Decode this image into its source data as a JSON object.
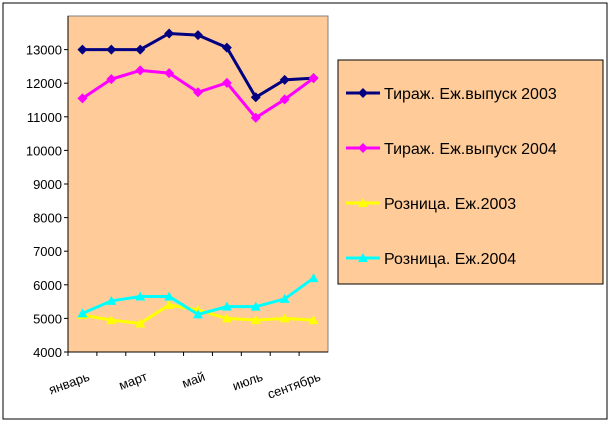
{
  "chart_data": {
    "type": "line",
    "categories": [
      "январь",
      null,
      "март",
      null,
      "май",
      null,
      "июль",
      null,
      "сентябрь"
    ],
    "series": [
      {
        "name": "Тираж. Еж.выпуск 2003",
        "color": "#000080",
        "marker": "diamond",
        "values": [
          13000,
          13000,
          13000,
          13480,
          13430,
          13060,
          11580,
          12100,
          12150
        ]
      },
      {
        "name": "Тираж. Еж.выпуск 2004",
        "color": "#ff00ff",
        "marker": "diamond",
        "values": [
          11550,
          12120,
          12380,
          12300,
          11730,
          12010,
          10970,
          11520,
          12150
        ]
      },
      {
        "name": "Розница. Еж.2003",
        "color": "#ffff00",
        "marker": "triangle",
        "values": [
          5100,
          4950,
          4850,
          5400,
          5250,
          5000,
          4950,
          5000,
          4950
        ]
      },
      {
        "name": "Розница. Еж.2004",
        "color": "#00ffff",
        "marker": "triangle",
        "values": [
          5150,
          5520,
          5650,
          5650,
          5120,
          5350,
          5350,
          5580,
          6200
        ]
      }
    ],
    "ylim": [
      4000,
      14000
    ],
    "yticks": [
      4000,
      5000,
      6000,
      7000,
      8000,
      9000,
      10000,
      11000,
      12000,
      13000
    ],
    "plot_background": "#ffcc99",
    "legend": "right"
  }
}
